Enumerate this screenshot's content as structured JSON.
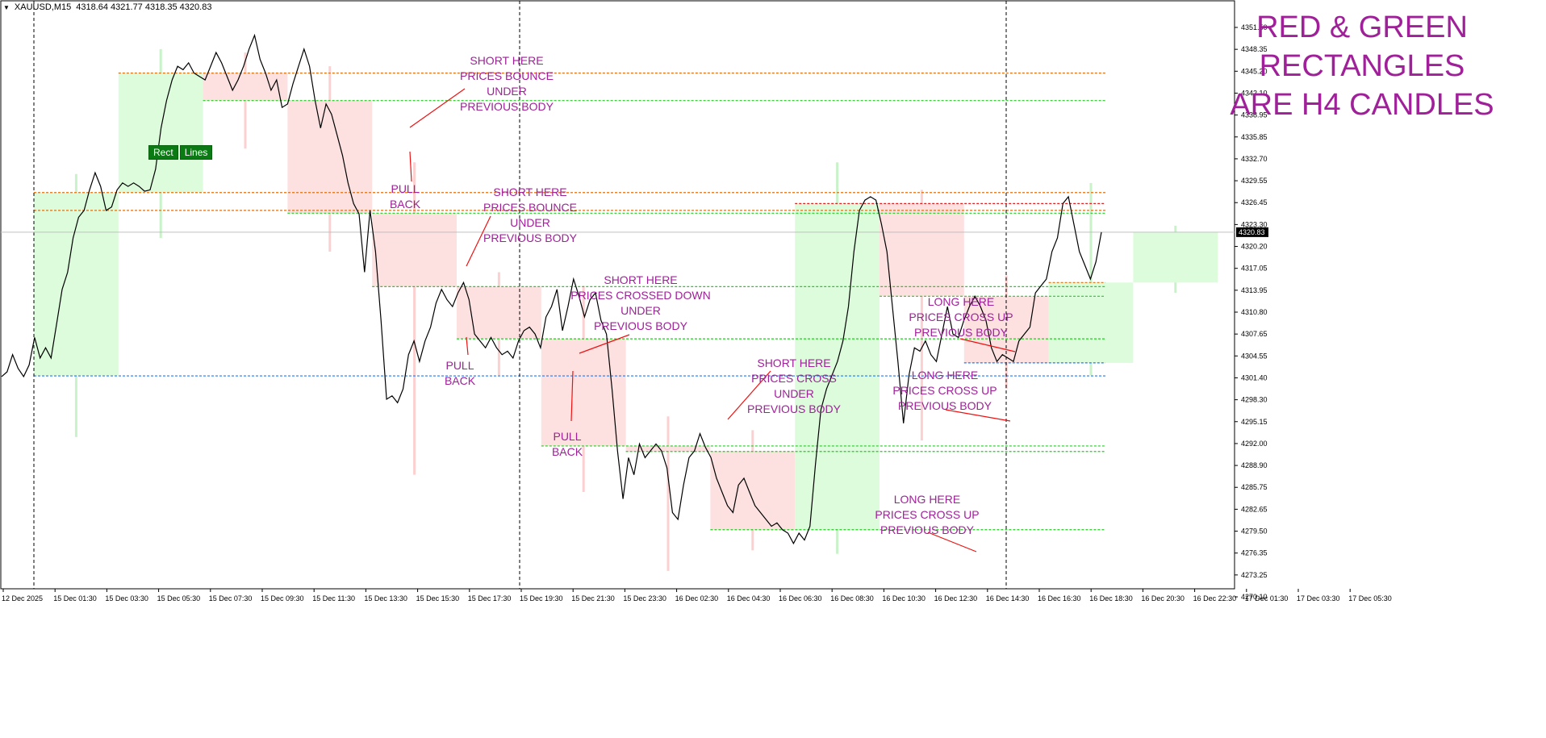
{
  "header": {
    "symbol": "XAUUSD,M15",
    "ohlc": "4318.64 4321.77 4318.35 4320.83"
  },
  "buttons": {
    "rect": "Rect",
    "lines": "Lines"
  },
  "title_lines": [
    "RED  &  GREEN",
    "RECTANGLES",
    "ARE  H4  CANDLES"
  ],
  "annotations": [
    {
      "lines": [
        "SHORT HERE",
        "PRICES BOUNCE",
        "UNDER",
        "PREVIOUS BODY"
      ]
    },
    {
      "lines": [
        "PULL",
        "BACK"
      ]
    },
    {
      "lines": [
        "SHORT HERE",
        "PRICES BOUNCE",
        "UNDER",
        "PREVIOUS BODY"
      ]
    },
    {
      "lines": [
        "PULL",
        "BACK"
      ]
    },
    {
      "lines": [
        "SHORT  HERE",
        "PRICES CROSSED DOWN",
        "UNDER",
        "PREVIOUS BODY"
      ]
    },
    {
      "lines": [
        "PULL",
        "BACK"
      ]
    },
    {
      "lines": [
        "SHORT HERE",
        "PRICES CROSS",
        "UNDER",
        "PREVIOUS BODY"
      ]
    },
    {
      "lines": [
        "LONG HERE",
        "PRICES CROSS UP",
        "PREVIOUS BODY"
      ]
    },
    {
      "lines": [
        "LONG HERE",
        "PRICES CROSS UP",
        "PREVIOUS BODY"
      ]
    },
    {
      "lines": [
        "LONG HERE",
        "PRICES CROSS UP",
        "PREVIOUS BODY"
      ]
    }
  ],
  "chart_data": {
    "type": "line",
    "ylim": [
      4268.9,
      4353.0
    ],
    "x_ticks": [
      "12 Dec 2025",
      "15 Dec 01:30",
      "15 Dec 03:30",
      "15 Dec 05:30",
      "15 Dec 07:30",
      "15 Dec 09:30",
      "15 Dec 11:30",
      "15 Dec 13:30",
      "15 Dec 15:30",
      "15 Dec 17:30",
      "15 Dec 19:30",
      "15 Dec 21:30",
      "15 Dec 23:30",
      "16 Dec 02:30",
      "16 Dec 04:30",
      "16 Dec 06:30",
      "16 Dec 08:30",
      "16 Dec 10:30",
      "16 Dec 12:30",
      "16 Dec 14:30",
      "16 Dec 16:30",
      "16 Dec 18:30",
      "16 Dec 20:30",
      "16 Dec 22:30",
      "17 Dec 01:30",
      "17 Dec 03:30",
      "17 Dec 05:30"
    ],
    "y_ticks": [
      "4351.50",
      "4348.35",
      "4345.20",
      "4342.10",
      "4338.95",
      "4335.85",
      "4332.70",
      "4329.55",
      "4326.45",
      "4323.30",
      "4320.20",
      "4317.05",
      "4313.95",
      "4310.80",
      "4307.65",
      "4304.55",
      "4301.40",
      "4298.30",
      "4295.15",
      "4292.00",
      "4288.90",
      "4285.75",
      "4282.65",
      "4279.50",
      "4276.35",
      "4273.25",
      "4270.10"
    ],
    "current_price": "4320.83",
    "current_value": 4320.83,
    "colors": {
      "bull": "#dcfcdc",
      "bear": "#fde0e0",
      "line": "#000000",
      "green_dash": "#22cc22",
      "orange_dash": "#e07010",
      "blue_dash": "#2277ee",
      "annot": "#a0209a",
      "pointer": "#ee1111"
    },
    "h4_candles": [
      {
        "o": 4299.9,
        "c": 4326.6,
        "h": 4329.3,
        "l": 4291.0
      },
      {
        "o": 4326.6,
        "c": 4344.0,
        "h": 4347.5,
        "l": 4320.0
      },
      {
        "o": 4344.0,
        "c": 4340.0,
        "h": 4347.0,
        "l": 4333.0
      },
      {
        "o": 4340.0,
        "c": 4323.6,
        "h": 4345.0,
        "l": 4318.0
      },
      {
        "o": 4323.6,
        "c": 4312.9,
        "h": 4331.0,
        "l": 4285.5
      },
      {
        "o": 4312.9,
        "c": 4305.3,
        "h": 4315.0,
        "l": 4300.0
      },
      {
        "o": 4305.3,
        "c": 4289.7,
        "h": 4313.0,
        "l": 4283.0
      },
      {
        "o": 4289.7,
        "c": 4288.9,
        "h": 4294.0,
        "l": 4271.5
      },
      {
        "o": 4288.9,
        "c": 4277.5,
        "h": 4292.0,
        "l": 4274.5
      },
      {
        "o": 4277.5,
        "c": 4325.0,
        "h": 4331.0,
        "l": 4274.0
      },
      {
        "o": 4325.0,
        "c": 4311.5,
        "h": 4327.0,
        "l": 4290.5
      },
      {
        "o": 4311.5,
        "c": 4301.8,
        "h": 4314.5,
        "l": 4298.0
      },
      {
        "o": 4301.8,
        "c": 4313.5,
        "h": 4328.0,
        "l": 4300.0
      },
      {
        "o": 4313.5,
        "c": 4320.83,
        "h": 4321.77,
        "l": 4312.0
      }
    ],
    "levels": [
      {
        "v": 4344.0,
        "style": "orange"
      },
      {
        "v": 4340.0,
        "style": "green"
      },
      {
        "v": 4326.6,
        "style": "orange"
      },
      {
        "v": 4323.6,
        "style": "green"
      },
      {
        "v": 4325.0,
        "style": "red"
      },
      {
        "v": 4324.0,
        "style": "orange"
      },
      {
        "v": 4312.9,
        "style": "green"
      },
      {
        "v": 4311.5,
        "style": "green"
      },
      {
        "v": 4313.5,
        "style": "orange"
      },
      {
        "v": 4305.3,
        "style": "green"
      },
      {
        "v": 4301.8,
        "style": "blue"
      },
      {
        "v": 4299.9,
        "style": "blue"
      },
      {
        "v": 4289.7,
        "style": "green"
      },
      {
        "v": 4288.9,
        "style": "green"
      },
      {
        "v": 4277.5,
        "style": "green"
      }
    ],
    "series": [
      {
        "values": [
          4299.8,
          4300.5,
          4303.0,
          4301.0,
          4299.8,
          4301.5,
          4305.5,
          4302.5,
          4304.0,
          4302.5,
          4307.5,
          4312.5,
          4315.0,
          4320.0,
          4323.0,
          4324.0,
          4327.0,
          4329.5,
          4327.5,
          4324.0,
          4324.5,
          4327.0,
          4328.0,
          4327.5,
          4328.0,
          4327.5,
          4326.8,
          4327.0,
          4330.0,
          4336.0,
          4340.0,
          4343.0,
          4345.0,
          4344.5,
          4345.5,
          4344.0,
          4343.5,
          4343.0,
          4345.0,
          4347.0,
          4345.5,
          4343.5,
          4341.5,
          4343.0,
          4345.0,
          4347.5,
          4349.5,
          4346.0,
          4344.0,
          4341.5,
          4343.0,
          4339.0,
          4339.5,
          4342.5,
          4345.0,
          4347.5,
          4345.0,
          4340.0,
          4336.0,
          4339.5,
          4338.0,
          4335.0,
          4332.0,
          4328.0,
          4325.0,
          4323.5,
          4315.0,
          4324.0,
          4318.0,
          4308.0,
          4296.5,
          4297.0,
          4296.0,
          4298.0,
          4303.0,
          4305.0,
          4302.0,
          4305.0,
          4307.0,
          4310.5,
          4312.5,
          4311.0,
          4310.0,
          4312.0,
          4313.5,
          4311.0,
          4306.0,
          4305.0,
          4304.0,
          4305.5,
          4304.0,
          4303.0,
          4303.5,
          4302.5,
          4305.0,
          4306.5,
          4307.0,
          4306.0,
          4304.0,
          4308.5,
          4310.0,
          4312.5,
          4306.5,
          4310.0,
          4314.0,
          4311.5,
          4308.5,
          4311.0,
          4312.0,
          4308.0,
          4306.0,
          4298.0,
          4289.0,
          4282.0,
          4288.0,
          4285.5,
          4290.0,
          4288.0,
          4289.0,
          4290.0,
          4289.0,
          4286.5,
          4280.0,
          4279.0,
          4284.0,
          4288.0,
          4289.0,
          4291.5,
          4289.5,
          4288.0,
          4285.0,
          4283.0,
          4281.0,
          4280.0,
          4284.0,
          4285.0,
          4283.0,
          4281.0,
          4280.0,
          4279.0,
          4278.0,
          4278.5,
          4277.5,
          4277.0,
          4275.5,
          4277.0,
          4276.0,
          4278.0,
          4287.0,
          4295.0,
          4298.0,
          4300.0,
          4302.0,
          4305.0,
          4310.0,
          4318.0,
          4324.0,
          4325.5,
          4326.0,
          4325.5,
          4322.0,
          4318.0,
          4310.0,
          4302.0,
          4293.0,
          4300.0,
          4304.0,
          4303.5,
          4305.0,
          4303.0,
          4302.0,
          4306.0,
          4310.0,
          4306.0,
          4305.5,
          4308.0,
          4310.0,
          4311.5,
          4310.0,
          4308.0,
          4304.0,
          4302.0,
          4303.0,
          4302.5,
          4302.0,
          4305.0,
          4306.0,
          4307.0,
          4312.0,
          4313.0,
          4314.0,
          4318.0,
          4320.0,
          4325.0,
          4326.0,
          4322.0,
          4318.0,
          4316.0,
          4314.0,
          4316.5,
          4320.83
        ]
      }
    ]
  }
}
